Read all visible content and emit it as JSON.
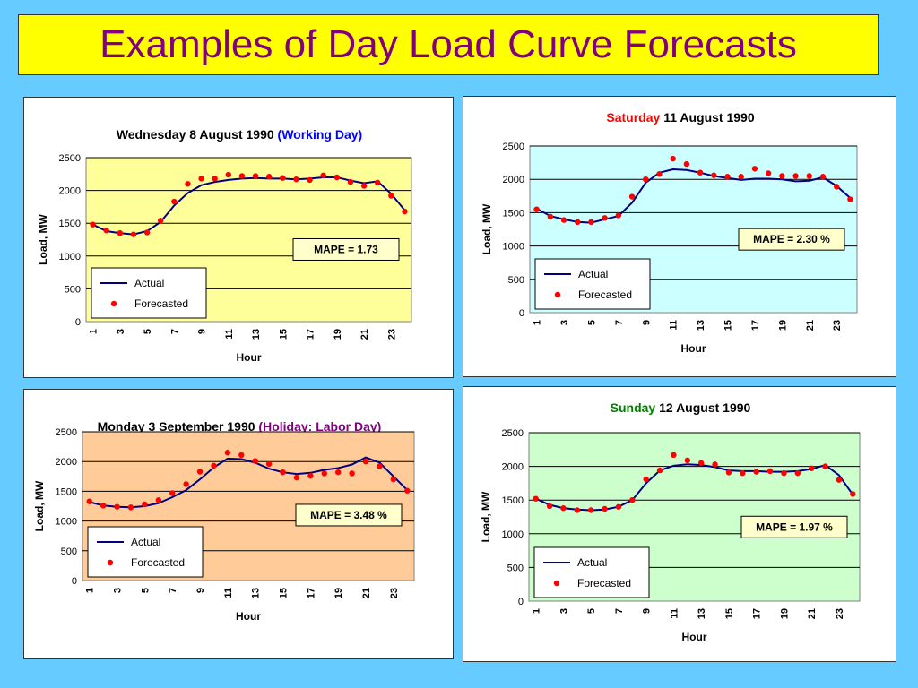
{
  "title": "Examples of Day Load Curve Forecasts",
  "colors": {
    "actual": "#000080",
    "forecast": "#ff0000",
    "title": "#800080"
  },
  "chart_data": [
    {
      "type": "line",
      "title_main": "Wednesday 8 August 1990",
      "title_extra": "(Working Day)",
      "title_extra_color": "#0000ff",
      "title_extra_first": false,
      "plot_bg": "#ffff99",
      "xlabel": "Hour",
      "ylabel": "Load, MW",
      "ylim": [
        0,
        2500
      ],
      "yticks": [
        "0",
        "500",
        "1000",
        "1500",
        "2000",
        "2500"
      ],
      "xticks": [
        "1",
        "3",
        "5",
        "7",
        "9",
        "11",
        "13",
        "15",
        "17",
        "19",
        "21",
        "23"
      ],
      "mape": "MAPE = 1.73",
      "legend": {
        "actual": "Actual",
        "forecast": "Forecasted"
      },
      "series": [
        {
          "name": "Actual",
          "values": [
            1480,
            1380,
            1350,
            1330,
            1380,
            1520,
            1770,
            1960,
            2080,
            2130,
            2160,
            2180,
            2190,
            2180,
            2180,
            2170,
            2180,
            2200,
            2200,
            2150,
            2110,
            2140,
            1950,
            1700
          ]
        },
        {
          "name": "Forecasted",
          "values": [
            1480,
            1390,
            1350,
            1330,
            1360,
            1540,
            1830,
            2100,
            2180,
            2180,
            2240,
            2220,
            2220,
            2210,
            2190,
            2170,
            2160,
            2230,
            2200,
            2130,
            2070,
            2120,
            1920,
            1680
          ]
        }
      ]
    },
    {
      "type": "line",
      "title_main": "11 August 1990",
      "title_extra": "Saturday",
      "title_extra_color": "#ff0000",
      "title_extra_first": true,
      "plot_bg": "#ccffff",
      "xlabel": "Hour",
      "ylabel": "Load, MW",
      "ylim": [
        0,
        2500
      ],
      "yticks": [
        "0",
        "500",
        "1000",
        "1500",
        "2000",
        "2500"
      ],
      "xticks": [
        "1",
        "3",
        "5",
        "7",
        "9",
        "11",
        "13",
        "15",
        "17",
        "19",
        "21",
        "23"
      ],
      "mape": "MAPE = 2.30 %",
      "legend": {
        "actual": "Actual",
        "forecast": "Forecasted"
      },
      "series": [
        {
          "name": "Actual",
          "values": [
            1560,
            1450,
            1400,
            1360,
            1350,
            1400,
            1450,
            1650,
            1950,
            2100,
            2150,
            2140,
            2100,
            2050,
            2020,
            1990,
            2010,
            2010,
            2000,
            1970,
            1980,
            2030,
            1900,
            1720
          ]
        },
        {
          "name": "Forecasted",
          "values": [
            1550,
            1440,
            1390,
            1360,
            1360,
            1420,
            1460,
            1740,
            2000,
            2080,
            2310,
            2230,
            2100,
            2060,
            2040,
            2040,
            2160,
            2090,
            2050,
            2050,
            2050,
            2040,
            1890,
            1700
          ]
        }
      ]
    },
    {
      "type": "line",
      "title_main": "Monday 3 September 1990",
      "title_extra": "(Holiday: Labor Day)",
      "title_extra_color": "#800080",
      "title_extra_first": false,
      "plot_bg": "#ffcc99",
      "xlabel": "Hour",
      "ylabel": "Load, MW",
      "ylim": [
        0,
        2500
      ],
      "yticks": [
        "0",
        "500",
        "1000",
        "1500",
        "2000",
        "2500"
      ],
      "xticks": [
        "1",
        "3",
        "5",
        "7",
        "9",
        "11",
        "13",
        "15",
        "17",
        "19",
        "21",
        "23"
      ],
      "mape": "MAPE = 3.48 %",
      "legend": {
        "actual": "Actual",
        "forecast": "Forecasted"
      },
      "series": [
        {
          "name": "Actual",
          "values": [
            1320,
            1260,
            1240,
            1230,
            1250,
            1300,
            1400,
            1520,
            1700,
            1900,
            2050,
            2040,
            1980,
            1880,
            1820,
            1790,
            1810,
            1860,
            1890,
            1950,
            2070,
            1980,
            1750,
            1520
          ]
        },
        {
          "name": "Forecasted",
          "values": [
            1330,
            1260,
            1240,
            1230,
            1280,
            1350,
            1470,
            1620,
            1830,
            1930,
            2150,
            2110,
            2010,
            1960,
            1820,
            1730,
            1760,
            1800,
            1820,
            1800,
            2000,
            1920,
            1700,
            1510
          ]
        }
      ]
    },
    {
      "type": "line",
      "title_main": "12 August 1990",
      "title_extra": "Sunday",
      "title_extra_color": "#008000",
      "title_extra_first": true,
      "plot_bg": "#ccffcc",
      "xlabel": "Hour",
      "ylabel": "Load, MW",
      "ylim": [
        0,
        2500
      ],
      "yticks": [
        "0",
        "500",
        "1000",
        "1500",
        "2000",
        "2500"
      ],
      "xticks": [
        "1",
        "3",
        "5",
        "7",
        "9",
        "11",
        "13",
        "15",
        "17",
        "19",
        "21",
        "23"
      ],
      "mape": "MAPE = 1.97 %",
      "legend": {
        "actual": "Actual",
        "forecast": "Forecasted"
      },
      "series": [
        {
          "name": "Actual",
          "values": [
            1520,
            1430,
            1380,
            1360,
            1350,
            1360,
            1400,
            1500,
            1750,
            1940,
            2010,
            2030,
            2020,
            1990,
            1940,
            1930,
            1930,
            1920,
            1920,
            1930,
            1960,
            2020,
            1870,
            1580
          ]
        },
        {
          "name": "Forecasted",
          "values": [
            1520,
            1410,
            1380,
            1350,
            1350,
            1370,
            1400,
            1500,
            1810,
            1940,
            2170,
            2090,
            2050,
            2030,
            1910,
            1900,
            1920,
            1930,
            1900,
            1900,
            1970,
            2000,
            1800,
            1590
          ]
        }
      ]
    }
  ]
}
